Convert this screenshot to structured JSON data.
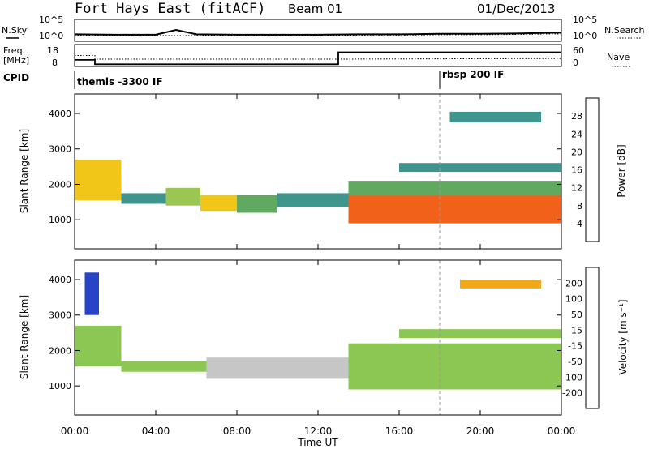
{
  "header": {
    "site": "Fort Hays East (fitACF)",
    "beam": "Beam 01",
    "date": "01/Dec/2013"
  },
  "noise_panel": {
    "left_label": "N.Sky",
    "right_label": "N.Search",
    "left_ticks": [
      "10^5",
      "10^0"
    ],
    "right_ticks": [
      "10^5",
      "10^0"
    ]
  },
  "freq_panel": {
    "left_label_top": "Freq.",
    "left_label_bottom": "[MHz]",
    "right_label": "Nave",
    "left_ticks": [
      "18",
      "8"
    ],
    "right_ticks": [
      "60",
      "0"
    ]
  },
  "cpid": {
    "label": "CPID",
    "segments": [
      {
        "text": "themis -3300 IF",
        "start_hour": 0
      },
      {
        "text": "rbsp 200 IF",
        "start_hour": 18
      }
    ]
  },
  "power_panel": {
    "ylabel": "Slant Range [km]",
    "yticks": [
      "4000",
      "3000",
      "2000",
      "1000"
    ],
    "colorbar_label": "Power [dB]",
    "colorbar_ticks": [
      "28",
      "24",
      "20",
      "16",
      "12",
      "8",
      "4"
    ],
    "colors": [
      "#0000e0",
      "#2050c0",
      "#2a8a80",
      "#50a050",
      "#90c040",
      "#f0c000",
      "#f09000",
      "#f05000",
      "#e00000"
    ]
  },
  "velocity_panel": {
    "ylabel": "Slant Range [km]",
    "yticks": [
      "4000",
      "3000",
      "2000",
      "1000"
    ],
    "colorbar_label": "Velocity [m s⁻¹]",
    "colorbar_ticks": [
      "200",
      "100",
      "50",
      "15",
      "-15",
      "-50",
      "-100",
      "-200"
    ],
    "colors": [
      "#1030c0",
      "#2060b0",
      "#30a040",
      "#80c040",
      "#c0c0c0",
      "#f0a000",
      "#f06000",
      "#e00000"
    ]
  },
  "xaxis": {
    "ticks": [
      "00:00",
      "04:00",
      "08:00",
      "12:00",
      "16:00",
      "20:00",
      "00:00"
    ],
    "label": "Time UT"
  },
  "chart_data": [
    {
      "type": "line",
      "name": "noise",
      "x_hours": [
        0,
        2,
        4,
        5,
        6,
        8,
        10,
        12,
        14,
        16,
        18,
        20,
        22,
        24
      ],
      "sky_log": [
        1.6,
        1.5,
        1.5,
        2.6,
        1.6,
        1.5,
        1.5,
        1.5,
        1.6,
        1.6,
        1.7,
        1.7,
        1.8,
        2.0
      ],
      "search_log": [
        1.3,
        1.3,
        1.3,
        1.3,
        1.3,
        1.3,
        1.3,
        1.3,
        1.4,
        1.4,
        1.5,
        1.5,
        1.6,
        1.7
      ],
      "ylim_log": [
        0,
        5
      ]
    },
    {
      "type": "line",
      "name": "frequency",
      "freq_steps": [
        [
          0,
          11,
          1.0
        ],
        [
          1.0,
          9,
          13.0
        ],
        [
          13.0,
          14.5,
          24
        ]
      ],
      "nave_points": [
        [
          0,
          30
        ],
        [
          1,
          30
        ],
        [
          1,
          20
        ],
        [
          13,
          20
        ],
        [
          13,
          20
        ],
        [
          24,
          22
        ]
      ],
      "ylim_left": [
        8,
        18
      ],
      "ylim_right": [
        0,
        60
      ]
    },
    {
      "type": "heatmap",
      "name": "power",
      "x_range_hours": [
        0,
        24
      ],
      "y_range_km": [
        180,
        4550
      ],
      "clim_db": [
        0,
        32
      ],
      "bands": [
        {
          "t0": 0,
          "t1": 2.3,
          "r0": 1550,
          "r1": 2700,
          "v": 20
        },
        {
          "t0": 2.3,
          "t1": 4.5,
          "r0": 1450,
          "r1": 1750,
          "v": 10
        },
        {
          "t0": 4.5,
          "t1": 6.2,
          "r0": 1400,
          "r1": 1900,
          "v": 16
        },
        {
          "t0": 6.2,
          "t1": 8.0,
          "r0": 1250,
          "r1": 1700,
          "v": 18
        },
        {
          "t0": 8.0,
          "t1": 10.0,
          "r0": 1200,
          "r1": 1700,
          "v": 12
        },
        {
          "t0": 10.0,
          "t1": 13.5,
          "r0": 1350,
          "r1": 1750,
          "v": 8
        },
        {
          "t0": 13.5,
          "t1": 24.0,
          "r0": 900,
          "r1": 1700,
          "v": 26
        },
        {
          "t0": 13.5,
          "t1": 24.0,
          "r0": 1700,
          "r1": 2100,
          "v": 14
        },
        {
          "t0": 16.0,
          "t1": 24.0,
          "r0": 2350,
          "r1": 2600,
          "v": 10
        },
        {
          "t0": 18.5,
          "t1": 23.0,
          "r0": 3750,
          "r1": 4050,
          "v": 8
        }
      ]
    },
    {
      "type": "heatmap",
      "name": "velocity",
      "x_range_hours": [
        0,
        24
      ],
      "y_range_km": [
        180,
        4550
      ],
      "clim_ms": [
        -200,
        200
      ],
      "bands": [
        {
          "t0": 0,
          "t1": 2.3,
          "r0": 1550,
          "r1": 2700,
          "v": 0
        },
        {
          "t0": 2.3,
          "t1": 6.5,
          "r0": 1400,
          "r1": 1700,
          "v": 40
        },
        {
          "t0": 6.5,
          "t1": 13.5,
          "r0": 1200,
          "r1": 1800,
          "v": -40
        },
        {
          "t0": 13.5,
          "t1": 24.0,
          "r0": 900,
          "r1": 2200,
          "v": 0
        },
        {
          "t0": 16.0,
          "t1": 24.0,
          "r0": 2350,
          "r1": 2600,
          "v": 0
        },
        {
          "t0": 0.5,
          "t1": 1.2,
          "r0": 3000,
          "r1": 4200,
          "v": 150
        },
        {
          "t0": 19.0,
          "t1": 23.0,
          "r0": 3750,
          "r1": 4000,
          "v": -100
        }
      ]
    }
  ]
}
